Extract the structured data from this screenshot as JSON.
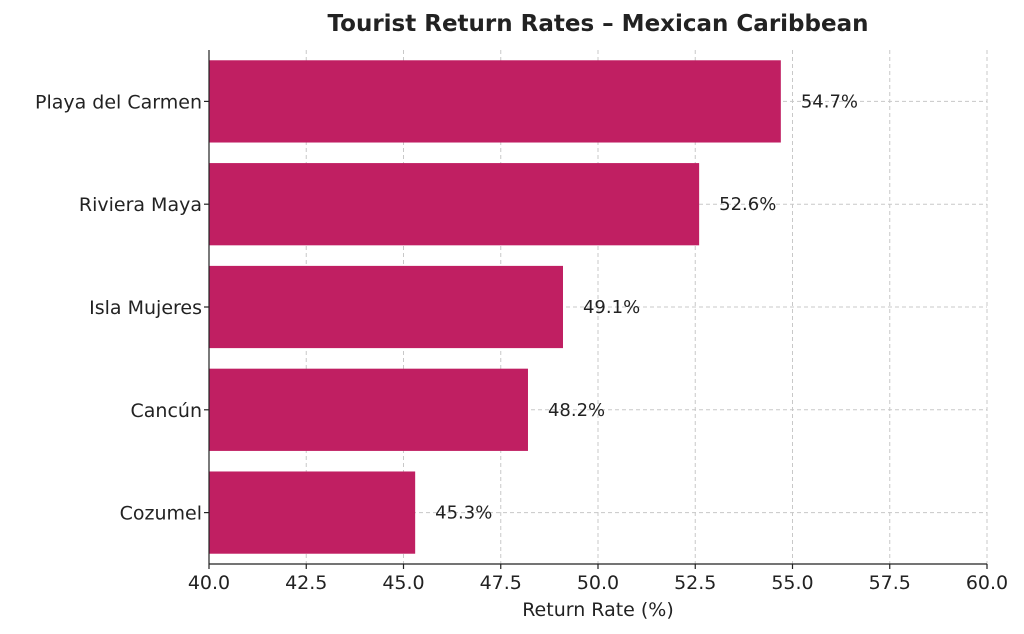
{
  "chart_data": {
    "type": "bar",
    "orientation": "horizontal",
    "title": "Tourist Return Rates – Mexican Caribbean",
    "xlabel": "Return Rate (%)",
    "ylabel": "",
    "categories": [
      "Playa del Carmen",
      "Riviera Maya",
      "Isla Mujeres",
      "Cancún",
      "Cozumel"
    ],
    "values": [
      54.7,
      52.6,
      49.1,
      48.2,
      45.3
    ],
    "data_labels": [
      "54.7%",
      "52.6%",
      "49.1%",
      "48.2%",
      "45.3%"
    ],
    "xlim": [
      40,
      60
    ],
    "xticks": [
      40.0,
      42.5,
      45.0,
      47.5,
      50.0,
      52.5,
      55.0,
      57.5,
      60.0
    ],
    "xtick_labels": [
      "40.0",
      "42.5",
      "45.0",
      "47.5",
      "50.0",
      "52.5",
      "55.0",
      "57.5",
      "60.0"
    ],
    "grid": true,
    "bar_color": "#c01f62"
  }
}
